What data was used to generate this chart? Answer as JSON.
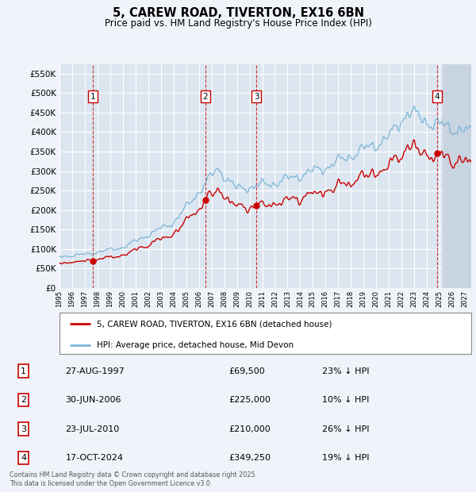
{
  "title": "5, CAREW ROAD, TIVERTON, EX16 6BN",
  "subtitle": "Price paid vs. HM Land Registry's House Price Index (HPI)",
  "legend_line1": "5, CAREW ROAD, TIVERTON, EX16 6BN (detached house)",
  "legend_line2": "HPI: Average price, detached house, Mid Devon",
  "footer1": "Contains HM Land Registry data © Crown copyright and database right 2025.",
  "footer2": "This data is licensed under the Open Government Licence v3.0.",
  "transactions": [
    {
      "num": 1,
      "date": "27-AUG-1997",
      "price": 69500,
      "pct": "23% ↓ HPI",
      "year": 1997.65
    },
    {
      "num": 2,
      "date": "30-JUN-2006",
      "price": 225000,
      "pct": "10% ↓ HPI",
      "year": 2006.5
    },
    {
      "num": 3,
      "date": "23-JUL-2010",
      "price": 210000,
      "pct": "26% ↓ HPI",
      "year": 2010.55
    },
    {
      "num": 4,
      "date": "17-OCT-2024",
      "price": 349250,
      "pct": "19% ↓ HPI",
      "year": 2024.79
    }
  ],
  "hpi_color": "#7ab4d8",
  "price_color": "#cc0000",
  "background_color": "#f0f4fa",
  "plot_bg_color": "#dce6f0",
  "grid_color": "#ffffff",
  "ylim": [
    0,
    575000
  ],
  "yticks": [
    0,
    50000,
    100000,
    150000,
    200000,
    250000,
    300000,
    350000,
    400000,
    450000,
    500000,
    550000
  ],
  "xlim_start": 1995.0,
  "xlim_end": 2027.5,
  "xticks": [
    1995,
    1996,
    1997,
    1998,
    1999,
    2000,
    2001,
    2002,
    2003,
    2004,
    2005,
    2006,
    2007,
    2008,
    2009,
    2010,
    2011,
    2012,
    2013,
    2014,
    2015,
    2016,
    2017,
    2018,
    2019,
    2020,
    2021,
    2022,
    2023,
    2024,
    2025,
    2026,
    2027
  ]
}
